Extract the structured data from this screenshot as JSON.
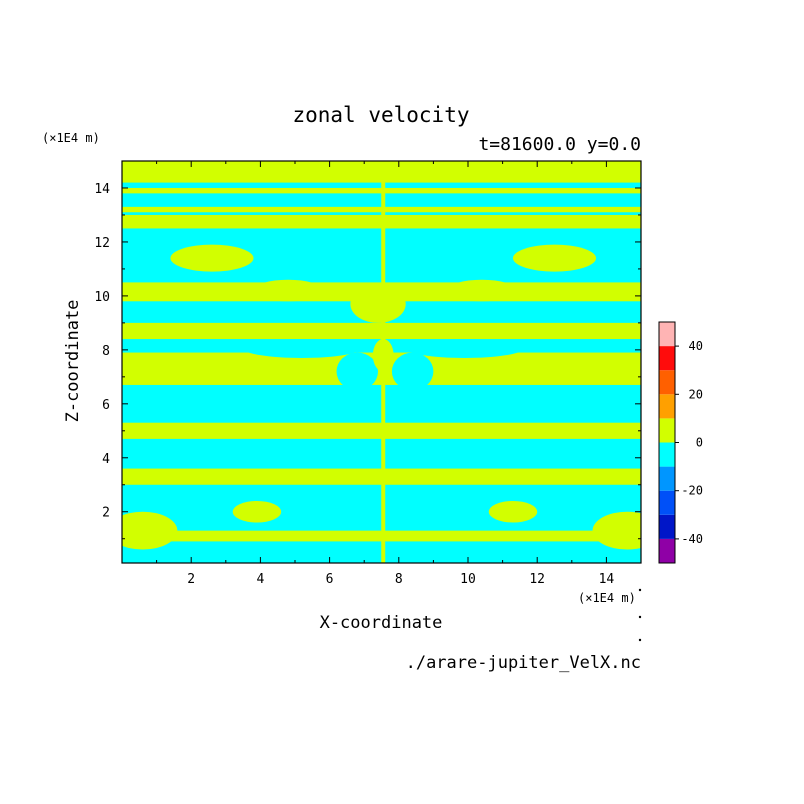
{
  "chart_data": {
    "type": "heatmap",
    "title": "zonal velocity",
    "subtitle": "t=81600.0 y=0.0",
    "xlabel": "X-coordinate",
    "ylabel": "Z-coordinate",
    "x_unit": "(×1E4 m)",
    "y_unit": "(×1E4 m)",
    "xlim": [
      0,
      15
    ],
    "ylim": [
      0.1,
      15
    ],
    "x_ticks": [
      2,
      4,
      6,
      8,
      10,
      12,
      14
    ],
    "y_ticks": [
      2,
      4,
      6,
      8,
      10,
      12,
      14
    ],
    "colorbar": {
      "levels": [
        -50,
        -40,
        -30,
        -20,
        -10,
        0,
        10,
        20,
        30,
        40,
        50
      ],
      "colors": [
        "#8f00a6",
        "#0016c8",
        "#0050f8",
        "#0096ff",
        "#00ffff",
        "#d2ff00",
        "#ffa000",
        "#ff6000",
        "#ff0c0c",
        "#ffb4b4"
      ],
      "tick_labels": [
        "-40",
        "-20",
        "0",
        "20",
        "40"
      ],
      "tick_values": [
        -40,
        -20,
        0,
        20,
        40
      ]
    },
    "field_classes": {
      "neg": "-10 to 0",
      "pos": "0 to 10"
    },
    "background_class": "pos",
    "bands_negative_z": [
      [
        0.1,
        0.9
      ],
      [
        1.3,
        3.0
      ],
      [
        3.6,
        4.7
      ],
      [
        5.3,
        6.7
      ],
      [
        7.9,
        8.4
      ],
      [
        9.0,
        9.8
      ],
      [
        10.5,
        12.5
      ],
      [
        13.0,
        13.1
      ],
      [
        13.3,
        13.8
      ],
      [
        14.0,
        14.2
      ]
    ],
    "blobs_negative": [
      {
        "cx": 5.2,
        "cz": 8.05,
        "rx": 1.7,
        "rz": 0.35
      },
      {
        "cx": 9.9,
        "cz": 8.05,
        "rx": 1.7,
        "rz": 0.35
      },
      {
        "cx": 6.8,
        "cz": 7.2,
        "rx": 0.6,
        "rz": 0.7
      },
      {
        "cx": 8.4,
        "cz": 7.2,
        "rx": 0.6,
        "rz": 0.7
      }
    ],
    "blobs_positive": [
      {
        "cx": 3.9,
        "cz": 2.0,
        "rx": 0.7,
        "rz": 0.4
      },
      {
        "cx": 11.3,
        "cz": 2.0,
        "rx": 0.7,
        "rz": 0.4
      },
      {
        "cx": 0.6,
        "cz": 1.3,
        "rx": 1.0,
        "rz": 0.7
      },
      {
        "cx": 14.6,
        "cz": 1.3,
        "rx": 1.0,
        "rz": 0.7
      },
      {
        "cx": 7.55,
        "cz": 7.8,
        "rx": 0.3,
        "rz": 0.6
      },
      {
        "cx": 7.4,
        "cz": 9.7,
        "rx": 0.8,
        "rz": 0.7
      },
      {
        "cx": 2.6,
        "cz": 11.4,
        "rx": 1.2,
        "rz": 0.5
      },
      {
        "cx": 12.5,
        "cz": 11.4,
        "rx": 1.2,
        "rz": 0.5
      },
      {
        "cx": 4.8,
        "cz": 10.2,
        "rx": 1.0,
        "rz": 0.4
      },
      {
        "cx": 10.4,
        "cz": 10.2,
        "rx": 1.0,
        "rz": 0.4
      }
    ],
    "divider_x": 7.55
  },
  "footer": {
    "source": "./arare-jupiter_VelX.nc"
  },
  "colors": {
    "neg": "#00ffff",
    "pos": "#d2ff00",
    "frame": "#000000"
  }
}
